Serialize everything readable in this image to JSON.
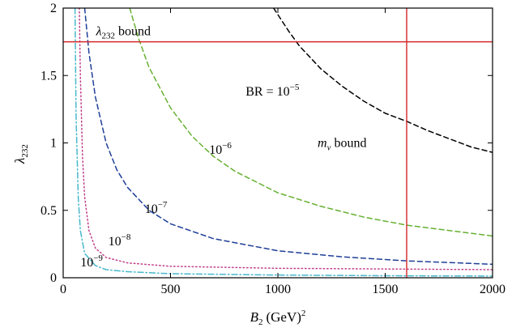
{
  "chart_data": {
    "type": "line",
    "title": "",
    "xlabel": {
      "base": "B",
      "sub": "2",
      "unit": "(GeV)",
      "sup": "2"
    },
    "ylabel": {
      "base": "λ",
      "sub": "232"
    },
    "xlim": [
      0,
      2000
    ],
    "ylim": [
      0,
      2
    ],
    "xticks": [
      0,
      500,
      1000,
      1500,
      2000
    ],
    "yticks": [
      0,
      0.5,
      1,
      1.5,
      2
    ],
    "xtick_labels": [
      "0",
      "500",
      "1000",
      "1500",
      "2000"
    ],
    "ytick_labels": [
      "0",
      "0.5",
      "1",
      "1.5",
      "2"
    ],
    "grid": false,
    "series": [
      {
        "label": "BR = 10^-5",
        "color": "#000000",
        "dash": "dashed",
        "x": [
          980,
          1050,
          1100,
          1200,
          1300,
          1400,
          1500,
          1600,
          1700,
          1800,
          1900,
          2000
        ],
        "y": [
          2.0,
          1.83,
          1.72,
          1.55,
          1.42,
          1.31,
          1.22,
          1.16,
          1.09,
          1.03,
          0.97,
          0.93
        ]
      },
      {
        "label": "10^-6",
        "color": "#66b032",
        "dash": "dashed",
        "x": [
          310,
          350,
          400,
          500,
          600,
          700,
          800,
          1000,
          1200,
          1400,
          1600,
          1800,
          2000
        ],
        "y": [
          2.0,
          1.78,
          1.56,
          1.26,
          1.05,
          0.9,
          0.79,
          0.63,
          0.53,
          0.45,
          0.39,
          0.35,
          0.31
        ]
      },
      {
        "label": "10^-7",
        "color": "#1f3f99",
        "dash": "dashed",
        "x": [
          100,
          120,
          150,
          200,
          250,
          300,
          400,
          500,
          700,
          1000,
          1300,
          1600,
          2000
        ],
        "y": [
          2.0,
          1.67,
          1.34,
          1.0,
          0.8,
          0.67,
          0.5,
          0.4,
          0.29,
          0.2,
          0.155,
          0.125,
          0.1
        ]
      },
      {
        "label": "10^-8",
        "color": "#c0408a",
        "dash": "dotted",
        "x": [
          75,
          80,
          90,
          100,
          120,
          150,
          200,
          300,
          500,
          1000,
          1500,
          2000
        ],
        "y": [
          2.0,
          1.5,
          0.9,
          0.6,
          0.35,
          0.22,
          0.15,
          0.11,
          0.085,
          0.07,
          0.065,
          0.06
        ]
      },
      {
        "label": "10^-9",
        "color": "#48b8cc",
        "dash": "dashdot",
        "x": [
          55,
          60,
          70,
          80,
          100,
          150,
          200,
          300,
          500,
          1000,
          1500,
          2000
        ],
        "y": [
          2.0,
          1.2,
          0.6,
          0.35,
          0.18,
          0.09,
          0.06,
          0.045,
          0.03,
          0.02,
          0.015,
          0.012
        ]
      }
    ],
    "bounds": [
      {
        "orientation": "horizontal",
        "value": 1.75,
        "color": "#d62728",
        "label": {
          "base": "λ",
          "sub": "232",
          "rest": " bound"
        }
      },
      {
        "orientation": "vertical",
        "value": 1600,
        "color": "#d62728",
        "label": {
          "base": "m",
          "sub": "ν",
          "rest": " bound"
        }
      }
    ],
    "annotations": [
      {
        "text": "BR = 10",
        "sup": "−5",
        "x": 850,
        "y": 1.35
      },
      {
        "text": "10",
        "sup": "−6",
        "x": 680,
        "y": 0.92
      },
      {
        "text": "10",
        "sup": "−7",
        "x": 380,
        "y": 0.48
      },
      {
        "text": "10",
        "sup": "−8",
        "x": 210,
        "y": 0.24
      },
      {
        "text": "10",
        "sup": "−9",
        "x": 80,
        "y": 0.085
      }
    ]
  }
}
